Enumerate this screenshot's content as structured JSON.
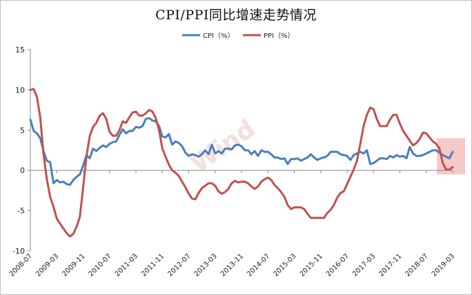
{
  "chart_data": {
    "type": "line",
    "title": "CPI/PPI同比增速走势情况",
    "watermark": "Wind",
    "ylim": [
      -10,
      15
    ],
    "yticks": [
      "-10",
      "-5",
      "0",
      "5",
      "10",
      "15"
    ],
    "xticks": [
      "2008-07",
      "2009-03",
      "2009-11",
      "2010-07",
      "2011-03",
      "2011-11",
      "2012-07",
      "2013-03",
      "2013-11",
      "2014-07",
      "2015-03",
      "2015-11",
      "2016-07",
      "2017-03",
      "2017-11",
      "2018-07",
      "2019-03"
    ],
    "legend": "top-center",
    "grid": false,
    "x": [
      "2008-07",
      "2008-08",
      "2008-09",
      "2008-10",
      "2008-11",
      "2008-12",
      "2009-01",
      "2009-02",
      "2009-03",
      "2009-04",
      "2009-05",
      "2009-06",
      "2009-07",
      "2009-08",
      "2009-09",
      "2009-10",
      "2009-11",
      "2009-12",
      "2010-01",
      "2010-02",
      "2010-03",
      "2010-04",
      "2010-05",
      "2010-06",
      "2010-07",
      "2010-08",
      "2010-09",
      "2010-10",
      "2010-11",
      "2010-12",
      "2011-01",
      "2011-02",
      "2011-03",
      "2011-04",
      "2011-05",
      "2011-06",
      "2011-07",
      "2011-08",
      "2011-09",
      "2011-10",
      "2011-11",
      "2011-12",
      "2012-01",
      "2012-02",
      "2012-03",
      "2012-04",
      "2012-05",
      "2012-06",
      "2012-07",
      "2012-08",
      "2012-09",
      "2012-10",
      "2012-11",
      "2012-12",
      "2013-01",
      "2013-02",
      "2013-03",
      "2013-04",
      "2013-05",
      "2013-06",
      "2013-07",
      "2013-08",
      "2013-09",
      "2013-10",
      "2013-11",
      "2013-12",
      "2014-01",
      "2014-02",
      "2014-03",
      "2014-04",
      "2014-05",
      "2014-06",
      "2014-07",
      "2014-08",
      "2014-09",
      "2014-10",
      "2014-11",
      "2014-12",
      "2015-01",
      "2015-02",
      "2015-03",
      "2015-04",
      "2015-05",
      "2015-06",
      "2015-07",
      "2015-08",
      "2015-09",
      "2015-10",
      "2015-11",
      "2015-12",
      "2016-01",
      "2016-02",
      "2016-03",
      "2016-04",
      "2016-05",
      "2016-06",
      "2016-07",
      "2016-08",
      "2016-09",
      "2016-10",
      "2016-11",
      "2016-12",
      "2017-01",
      "2017-02",
      "2017-03",
      "2017-04",
      "2017-05",
      "2017-06",
      "2017-07",
      "2017-08",
      "2017-09",
      "2017-10",
      "2017-11",
      "2017-12",
      "2018-01",
      "2018-02",
      "2018-03",
      "2018-04",
      "2018-05",
      "2018-06",
      "2018-07",
      "2018-08",
      "2018-09",
      "2018-10",
      "2018-11",
      "2018-12",
      "2019-01",
      "2019-02",
      "2019-03"
    ],
    "series": [
      {
        "name": "CPI（%）",
        "color": "#4a7ebb",
        "values": [
          6.3,
          4.9,
          4.6,
          4.0,
          2.4,
          1.2,
          1.0,
          -1.6,
          -1.2,
          -1.5,
          -1.4,
          -1.7,
          -1.8,
          -1.2,
          -0.8,
          -0.5,
          0.6,
          1.9,
          1.5,
          2.7,
          2.4,
          2.8,
          3.1,
          2.9,
          3.3,
          3.5,
          3.6,
          4.4,
          5.1,
          4.6,
          4.9,
          4.9,
          5.4,
          5.3,
          5.5,
          6.4,
          6.5,
          6.2,
          6.1,
          5.5,
          4.2,
          4.1,
          4.5,
          3.2,
          3.6,
          3.4,
          3.0,
          2.2,
          1.8,
          2.0,
          1.9,
          1.7,
          2.0,
          2.5,
          2.0,
          3.2,
          2.1,
          2.4,
          2.1,
          2.7,
          2.7,
          2.6,
          3.1,
          3.2,
          3.0,
          2.5,
          2.5,
          2.0,
          2.4,
          1.8,
          2.5,
          2.3,
          2.3,
          2.0,
          1.6,
          1.6,
          1.4,
          1.5,
          0.8,
          1.4,
          1.4,
          1.5,
          1.2,
          1.4,
          1.6,
          2.0,
          1.6,
          1.3,
          1.5,
          1.6,
          1.8,
          2.3,
          2.3,
          2.3,
          2.0,
          1.9,
          1.8,
          1.3,
          1.9,
          2.1,
          2.3,
          2.1,
          2.5,
          0.8,
          0.9,
          1.2,
          1.5,
          1.5,
          1.4,
          1.8,
          1.6,
          1.9,
          1.7,
          1.8,
          1.5,
          2.9,
          2.1,
          1.8,
          1.8,
          1.9,
          2.1,
          2.3,
          2.5,
          2.5,
          2.2,
          1.9,
          1.7,
          1.5,
          2.3
        ]
      },
      {
        "name": "PPI（%）",
        "color": "#c0504d",
        "values": [
          10.0,
          10.1,
          9.1,
          6.6,
          2.0,
          -1.1,
          -3.3,
          -4.5,
          -6.0,
          -6.6,
          -7.2,
          -7.8,
          -8.2,
          -7.9,
          -7.0,
          -5.8,
          -2.1,
          1.7,
          4.3,
          5.4,
          5.9,
          6.8,
          7.1,
          6.4,
          4.8,
          4.3,
          4.3,
          5.0,
          6.1,
          5.9,
          6.6,
          7.2,
          7.3,
          6.8,
          6.8,
          7.1,
          7.5,
          7.3,
          6.5,
          5.0,
          2.7,
          1.7,
          0.7,
          0.0,
          -0.3,
          -0.7,
          -1.4,
          -2.1,
          -2.9,
          -3.5,
          -3.6,
          -2.8,
          -2.2,
          -1.9,
          -1.6,
          -1.6,
          -1.9,
          -2.6,
          -2.9,
          -2.7,
          -2.3,
          -1.6,
          -1.3,
          -1.5,
          -1.4,
          -1.4,
          -1.6,
          -2.0,
          -2.3,
          -2.0,
          -1.4,
          -1.1,
          -0.9,
          -1.2,
          -1.8,
          -2.2,
          -2.7,
          -3.3,
          -4.3,
          -4.8,
          -4.6,
          -4.6,
          -4.6,
          -4.8,
          -5.4,
          -5.9,
          -5.9,
          -5.9,
          -5.9,
          -5.9,
          -5.3,
          -4.9,
          -4.3,
          -3.4,
          -2.8,
          -2.6,
          -1.7,
          -0.8,
          0.1,
          1.2,
          3.3,
          5.5,
          6.9,
          7.8,
          7.6,
          6.4,
          5.5,
          5.5,
          5.5,
          6.3,
          6.9,
          6.9,
          5.8,
          4.9,
          4.3,
          3.7,
          3.1,
          3.4,
          3.9,
          4.7,
          4.6,
          4.1,
          3.6,
          3.3,
          2.7,
          0.9,
          0.1,
          0.1,
          0.4
        ]
      }
    ]
  }
}
